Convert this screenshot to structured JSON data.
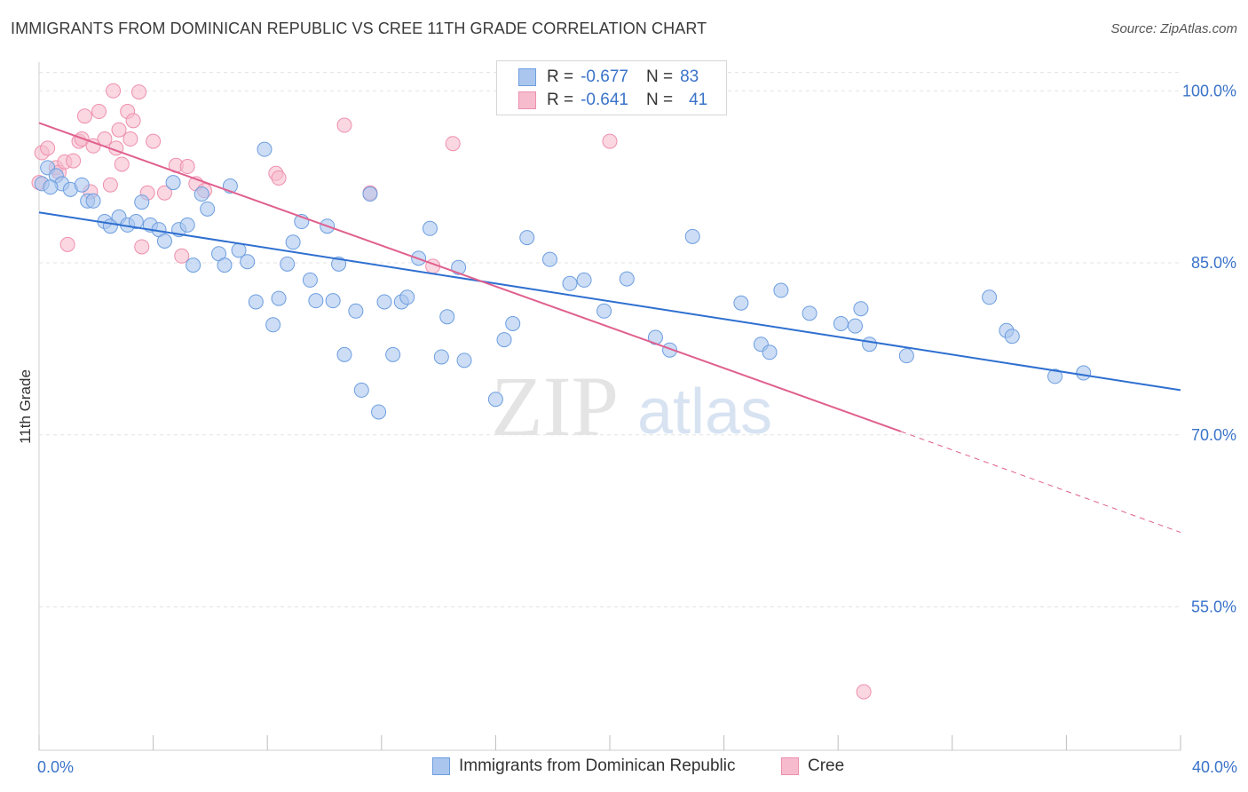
{
  "title": "IMMIGRANTS FROM DOMINICAN REPUBLIC VS CREE 11TH GRADE CORRELATION CHART",
  "source": "Source: ZipAtlas.com",
  "watermark": {
    "left": "ZIP",
    "right": "atlas"
  },
  "legend_top": {
    "blue": {
      "r_label": "R =",
      "r_value": "-0.677",
      "n_label": "N =",
      "n_value": "83"
    },
    "pink": {
      "r_label": "R =",
      "r_value": "-0.641",
      "n_label": "N =",
      "n_value": "41"
    }
  },
  "colors": {
    "blue_fill": "#aac6ee",
    "blue_stroke": "#6d9ee0",
    "blue_line": "#2e6fd0",
    "pink_fill": "#f6bccd",
    "pink_stroke": "#ee8fae",
    "pink_line": "#e0608e",
    "grid": "#e3e3e3",
    "tick_label": "#3a73c9"
  },
  "chart_data": {
    "type": "scatter",
    "title": "IMMIGRANTS FROM DOMINICAN REPUBLIC VS CREE 11TH GRADE CORRELATION CHART",
    "xlabel": "",
    "ylabel": "11th Grade",
    "xlim": [
      0,
      40
    ],
    "ylim": [
      42.5,
      102.5
    ],
    "x_tick_labels": [
      "0.0%",
      "40.0%"
    ],
    "y_ticks": [
      55,
      70,
      85,
      100
    ],
    "y_tick_labels": [
      "55.0%",
      "70.0%",
      "85.0%",
      "100.0%"
    ],
    "grid": true,
    "legend_position": "bottom",
    "series": [
      {
        "name": "Immigrants from Dominican Republic",
        "color": "#aac6ee",
        "trend": {
          "x0": 0,
          "y0": 89.4,
          "x1": 40,
          "y1": 73.9
        },
        "points": [
          [
            0.3,
            93.3
          ],
          [
            0.6,
            92.6
          ],
          [
            0.8,
            91.9
          ],
          [
            1.1,
            91.4
          ],
          [
            1.5,
            91.8
          ],
          [
            1.7,
            90.4
          ],
          [
            1.9,
            90.4
          ],
          [
            2.3,
            88.6
          ],
          [
            2.5,
            88.2
          ],
          [
            2.8,
            89.0
          ],
          [
            3.1,
            88.3
          ],
          [
            3.4,
            88.6
          ],
          [
            3.6,
            90.3
          ],
          [
            3.9,
            88.3
          ],
          [
            4.2,
            87.9
          ],
          [
            4.4,
            86.9
          ],
          [
            4.7,
            92.0
          ],
          [
            4.9,
            87.9
          ],
          [
            5.2,
            88.3
          ],
          [
            5.4,
            84.8
          ],
          [
            5.7,
            91.0
          ],
          [
            5.9,
            89.7
          ],
          [
            6.3,
            85.8
          ],
          [
            6.5,
            84.8
          ],
          [
            6.7,
            91.7
          ],
          [
            7.0,
            86.1
          ],
          [
            7.3,
            85.1
          ],
          [
            7.6,
            81.6
          ],
          [
            7.9,
            94.9
          ],
          [
            8.2,
            79.6
          ],
          [
            8.4,
            81.9
          ],
          [
            8.7,
            84.9
          ],
          [
            8.9,
            86.8
          ],
          [
            9.2,
            88.6
          ],
          [
            9.5,
            83.5
          ],
          [
            9.7,
            81.7
          ],
          [
            10.1,
            88.2
          ],
          [
            10.3,
            81.7
          ],
          [
            10.5,
            84.9
          ],
          [
            10.7,
            77.0
          ],
          [
            11.1,
            80.8
          ],
          [
            11.3,
            73.9
          ],
          [
            11.6,
            91.0
          ],
          [
            11.9,
            72.0
          ],
          [
            12.1,
            81.6
          ],
          [
            12.4,
            77.0
          ],
          [
            12.7,
            81.6
          ],
          [
            12.9,
            82.0
          ],
          [
            13.3,
            85.4
          ],
          [
            13.7,
            88.0
          ],
          [
            14.1,
            76.8
          ],
          [
            14.3,
            80.3
          ],
          [
            14.7,
            84.6
          ],
          [
            14.9,
            76.5
          ],
          [
            16.0,
            73.1
          ],
          [
            16.3,
            78.3
          ],
          [
            16.6,
            79.7
          ],
          [
            17.1,
            87.2
          ],
          [
            17.9,
            85.3
          ],
          [
            18.6,
            83.2
          ],
          [
            19.1,
            83.5
          ],
          [
            19.8,
            80.8
          ],
          [
            20.6,
            83.6
          ],
          [
            21.6,
            78.5
          ],
          [
            22.1,
            77.4
          ],
          [
            22.9,
            87.3
          ],
          [
            24.6,
            81.5
          ],
          [
            25.3,
            77.9
          ],
          [
            25.6,
            77.2
          ],
          [
            26.0,
            82.6
          ],
          [
            27.0,
            80.6
          ],
          [
            28.1,
            79.7
          ],
          [
            28.6,
            79.5
          ],
          [
            28.8,
            81.0
          ],
          [
            29.1,
            77.9
          ],
          [
            30.4,
            76.9
          ],
          [
            33.3,
            82.0
          ],
          [
            33.9,
            79.1
          ],
          [
            34.1,
            78.6
          ],
          [
            35.6,
            75.1
          ],
          [
            36.6,
            75.4
          ],
          [
            0.1,
            91.9
          ],
          [
            0.4,
            91.6
          ]
        ]
      },
      {
        "name": "Cree",
        "color": "#f6bccd",
        "trend": {
          "x0": 0,
          "y0": 97.2,
          "x1": 30.2,
          "y1": 70.3,
          "dash_x1": 40,
          "dash_y1": 61.5
        },
        "points": [
          [
            0.1,
            94.6
          ],
          [
            0.3,
            95.0
          ],
          [
            0.6,
            93.3
          ],
          [
            0.7,
            92.9
          ],
          [
            0.9,
            93.8
          ],
          [
            1.0,
            86.6
          ],
          [
            1.2,
            93.9
          ],
          [
            1.4,
            95.6
          ],
          [
            1.5,
            95.8
          ],
          [
            1.6,
            97.8
          ],
          [
            1.8,
            91.2
          ],
          [
            1.9,
            95.2
          ],
          [
            2.1,
            98.2
          ],
          [
            2.3,
            95.8
          ],
          [
            2.5,
            91.8
          ],
          [
            2.6,
            100.0
          ],
          [
            2.7,
            95.0
          ],
          [
            2.8,
            96.6
          ],
          [
            2.9,
            93.6
          ],
          [
            3.1,
            98.2
          ],
          [
            3.2,
            95.8
          ],
          [
            3.3,
            97.4
          ],
          [
            3.5,
            99.9
          ],
          [
            3.6,
            86.4
          ],
          [
            3.8,
            91.1
          ],
          [
            4.0,
            95.6
          ],
          [
            4.4,
            91.1
          ],
          [
            4.8,
            93.5
          ],
          [
            5.0,
            85.6
          ],
          [
            5.2,
            93.4
          ],
          [
            5.5,
            91.9
          ],
          [
            5.8,
            91.3
          ],
          [
            8.3,
            92.8
          ],
          [
            8.4,
            92.4
          ],
          [
            10.7,
            97.0
          ],
          [
            11.6,
            91.1
          ],
          [
            13.8,
            84.7
          ],
          [
            14.5,
            95.4
          ],
          [
            20.0,
            95.6
          ],
          [
            28.9,
            47.6
          ],
          [
            0.0,
            92.0
          ]
        ]
      }
    ]
  },
  "legend_bottom": [
    {
      "label": "Immigrants from Dominican Republic"
    },
    {
      "label": "Cree"
    }
  ]
}
